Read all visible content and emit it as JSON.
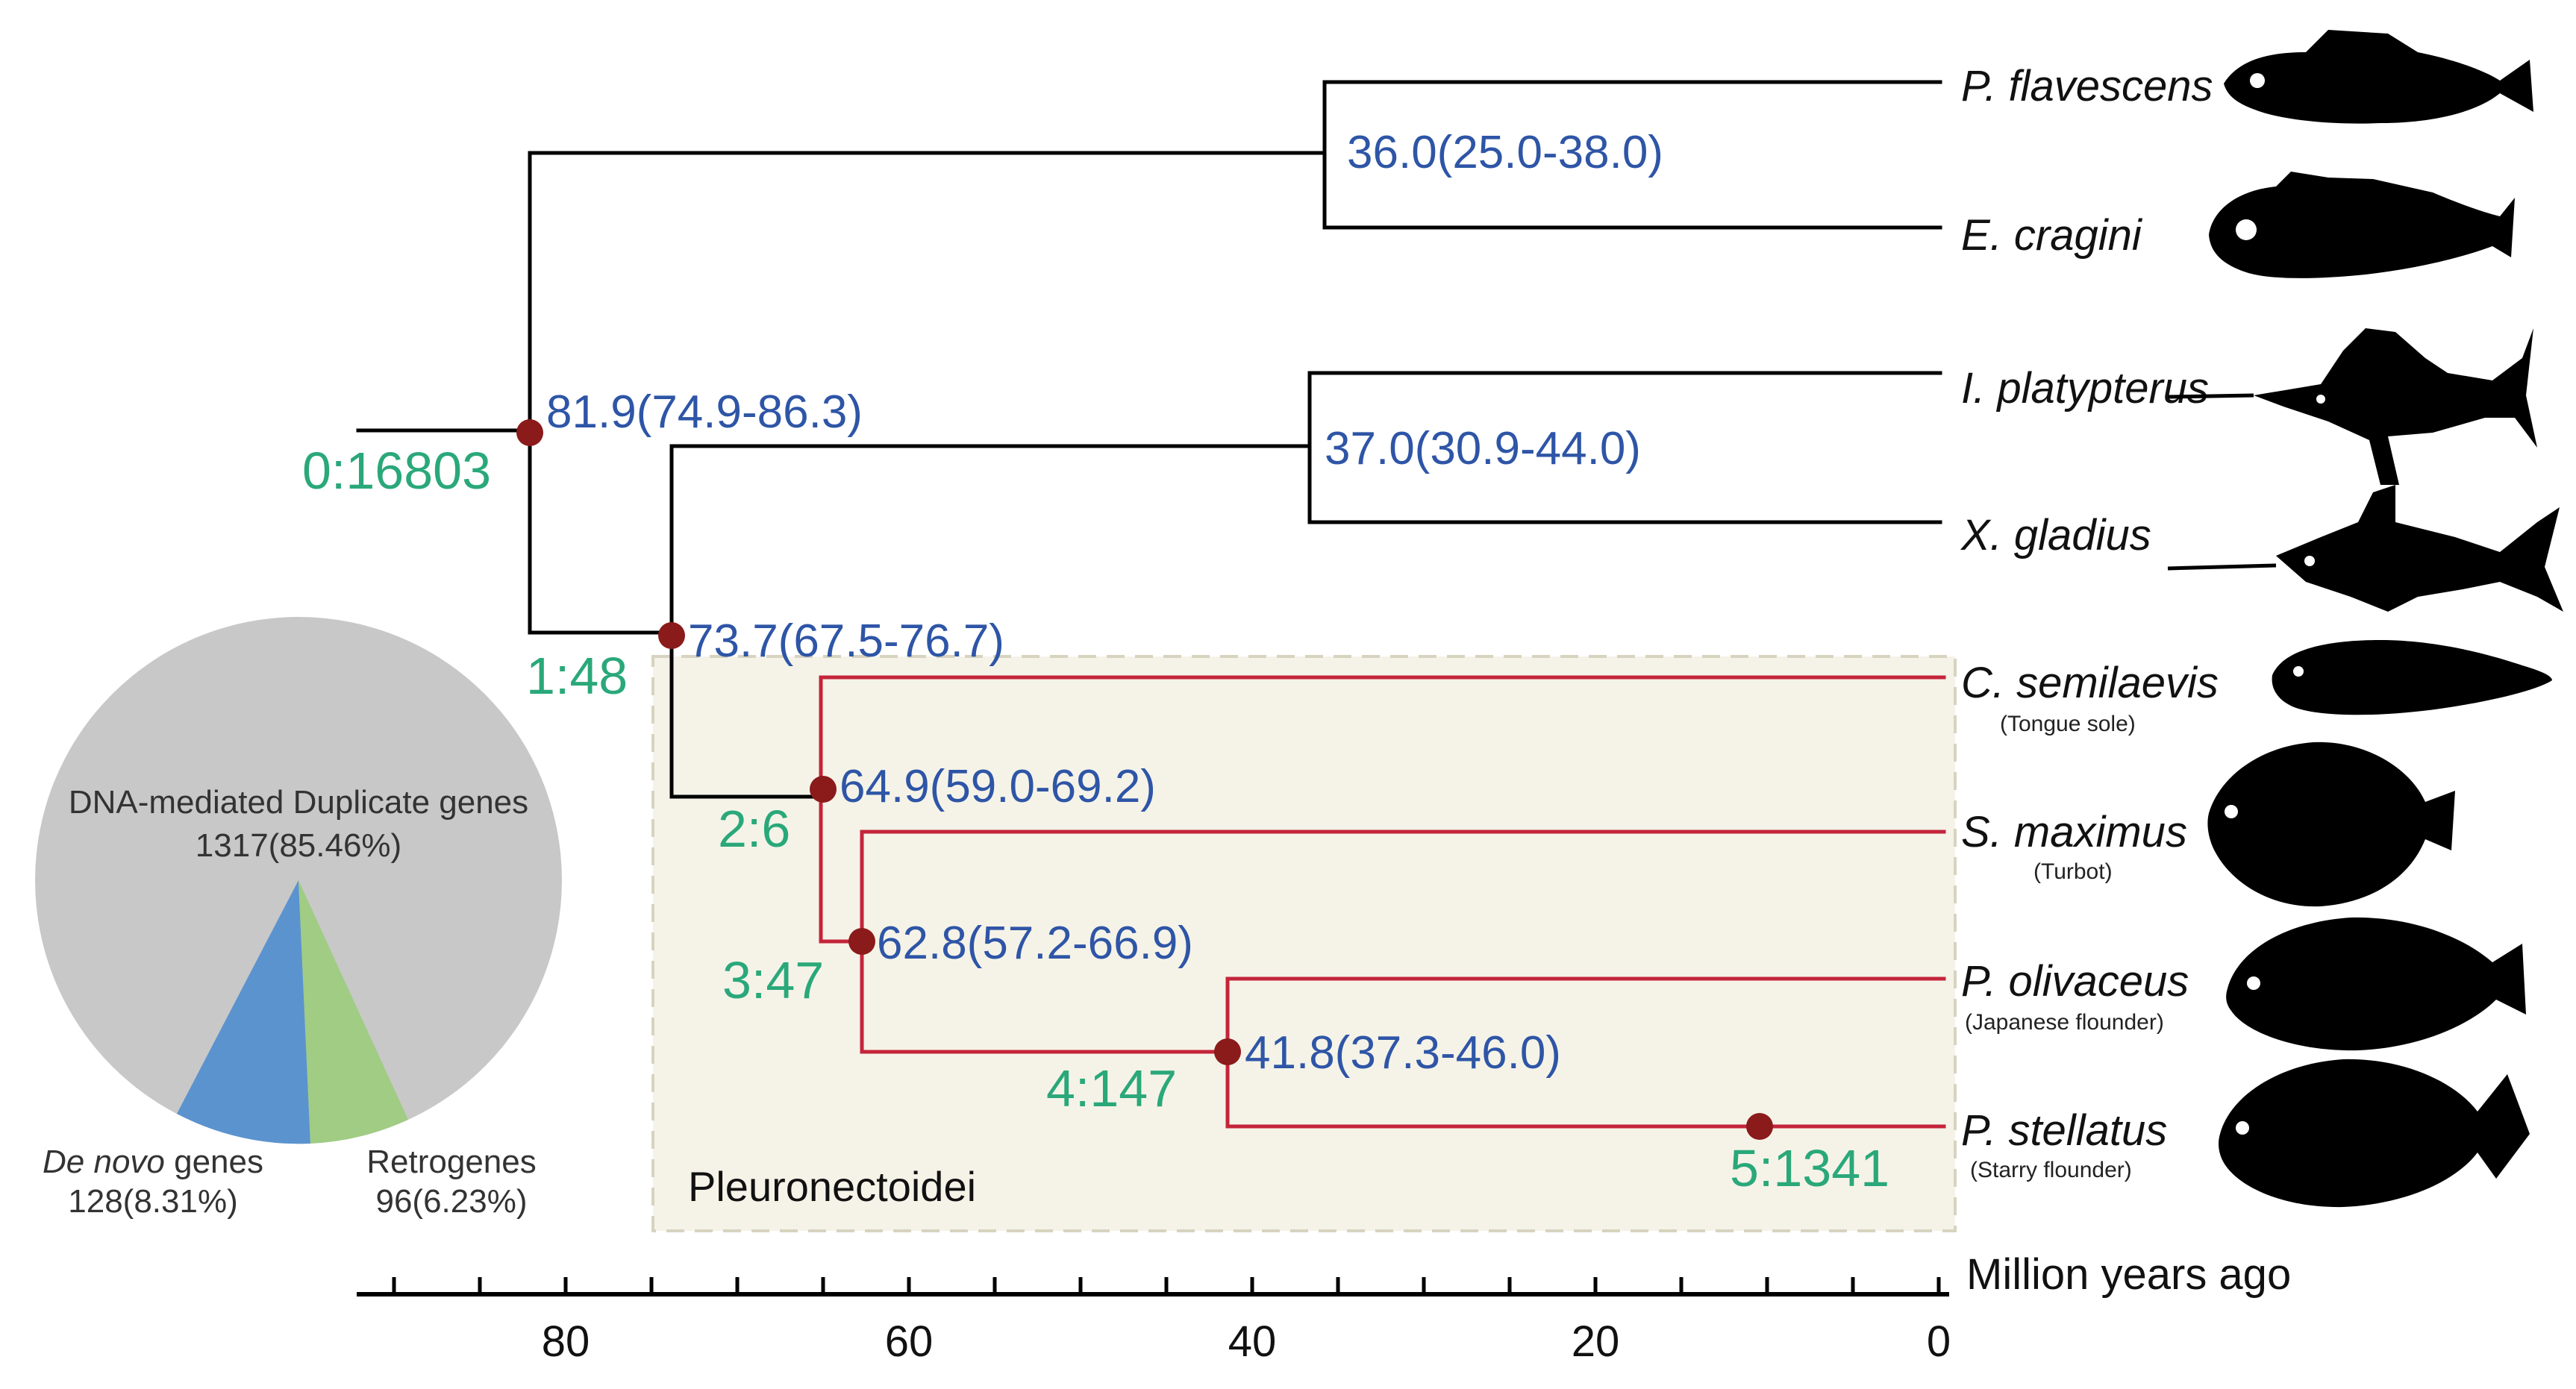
{
  "tree": {
    "nodes": [
      {
        "id": "root",
        "date": "81.9(74.9-86.3)",
        "dup": "0:16803"
      },
      {
        "id": "n1",
        "date": "73.7(67.5-76.7)",
        "dup": "1:48"
      },
      {
        "id": "n2",
        "date": "64.9(59.0-69.2)",
        "dup": "2:6"
      },
      {
        "id": "n3",
        "date": "62.8(57.2-66.9)",
        "dup": "3:47"
      },
      {
        "id": "n4",
        "date": "41.8(37.3-46.0)",
        "dup": "4:147"
      },
      {
        "id": "n5",
        "date": "",
        "dup": "5:1341"
      },
      {
        "id": "n_perc",
        "date": "36.0(25.0-38.0)",
        "dup": ""
      },
      {
        "id": "n_bill",
        "date": "37.0(30.9-44.0)",
        "dup": ""
      }
    ],
    "clade_label": "Pleuronectoidei",
    "species": [
      {
        "name": "P. flavescens",
        "common": ""
      },
      {
        "name": "E. cragini",
        "common": ""
      },
      {
        "name": "I. platypterus",
        "common": ""
      },
      {
        "name": "X. gladius",
        "common": ""
      },
      {
        "name": "C. semilaevis",
        "common": "(Tongue sole)"
      },
      {
        "name": "S. maximus",
        "common": "(Turbot)"
      },
      {
        "name": "P. olivaceus",
        "common": "(Japanese flounder)"
      },
      {
        "name": "P. stellatus",
        "common": "(Starry flounder)"
      }
    ],
    "colors": {
      "branch": "#000000",
      "clade_branch": "#c4243a",
      "date": "#2e55a6",
      "dup": "#2aa87a",
      "node": "#8b1a1a",
      "clade_box": "#f5f3e8"
    }
  },
  "axis": {
    "title": "Million years ago",
    "ticks": [
      "80",
      "60",
      "40",
      "20",
      "0"
    ]
  },
  "pie": {
    "slices": [
      {
        "label": "DNA-mediated Duplicate genes",
        "value": "1317(85.46%)",
        "color": "#c8c8c8",
        "pct": 85.46
      },
      {
        "label": "De novo",
        "label_suffix": " genes",
        "value": "128(8.31%)",
        "color": "#5b93cf",
        "pct": 8.31
      },
      {
        "label": "Retrogenes",
        "value": "96(6.23%)",
        "color": "#a0cc84",
        "pct": 6.23
      }
    ]
  }
}
